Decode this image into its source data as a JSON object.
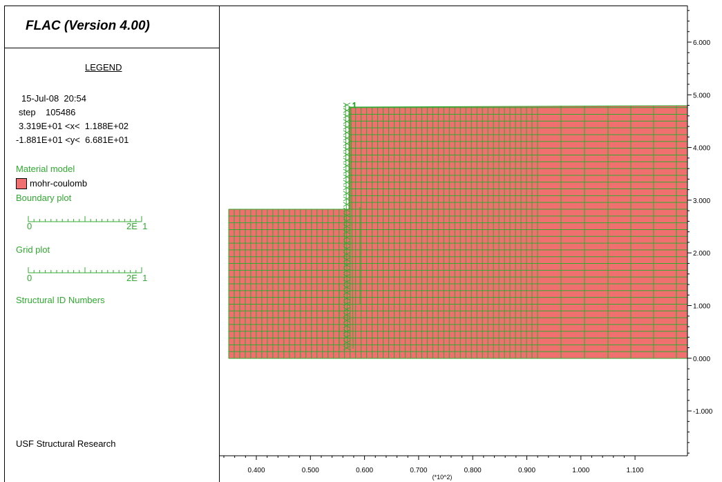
{
  "title": "FLAC (Version 4.00)",
  "legend": {
    "heading": "LEGEND",
    "date_time": "15-Jul-08  20:54",
    "step": "step    105486",
    "x_range": "3.319E+01 <x<  1.188E+02",
    "y_range": "-1.881E+01 <y<  6.681E+01",
    "material_model_label": "Material model",
    "material_name": "mohr-coulomb",
    "material_color": "#f07070",
    "boundary_plot_label": "Boundary plot",
    "boundary_scale_min": "0",
    "boundary_scale_max": "2E  1",
    "grid_plot_label": "Grid plot",
    "grid_scale_min": "0",
    "grid_scale_max": "2E  1",
    "structural_label": "Structural ID Numbers",
    "footer": "USF Structural Research"
  },
  "plot": {
    "x_ticks": [
      "0.400",
      "0.500",
      "0.600",
      "0.700",
      "0.800",
      "0.900",
      "1.000",
      "1.100"
    ],
    "x_unit": "(*10^2)",
    "y_ticks": [
      "6.000",
      "5.000",
      "4.000",
      "3.000",
      "2.000",
      "1.000",
      "0.000",
      "-1.000"
    ],
    "grid_color": "#2faa2f",
    "fill_color": "#f07070",
    "structure_id": "1"
  }
}
